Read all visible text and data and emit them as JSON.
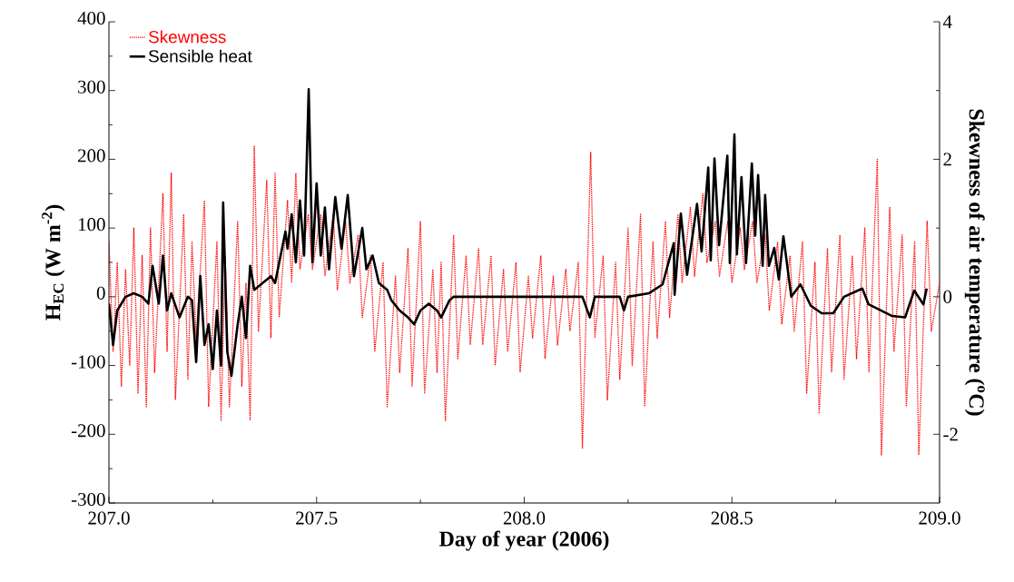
{
  "chart_data": {
    "type": "line",
    "xlabel": "Day of year (2006)",
    "ylabel": "H$_{EC}$ (W m$^{-2}$)",
    "y2label": "Skewness of air temperature ($^{o}$C)",
    "xlim": [
      207.0,
      209.0
    ],
    "xticks": [
      {
        "value": 207.0,
        "label": "207.0"
      },
      {
        "value": 207.5,
        "label": "207.5"
      },
      {
        "value": 208.0,
        "label": "208.0"
      },
      {
        "value": 208.5,
        "label": "208.5"
      },
      {
        "value": 209.0,
        "label": "209.0"
      }
    ],
    "ylim": [
      -300,
      400
    ],
    "yticks": [
      -300,
      -200,
      -100,
      0,
      100,
      200,
      300,
      400
    ],
    "y2lim": [
      -3,
      4
    ],
    "y2ticks": [
      -2,
      0,
      2,
      4
    ],
    "legend": "top left",
    "grid": false,
    "marker": "none",
    "series": [
      {
        "name": "Skewness",
        "color": "#ff0000",
        "axis": "y2",
        "line_style": "dotted",
        "x": [
          207.0,
          207.01,
          207.02,
          207.03,
          207.04,
          207.05,
          207.06,
          207.07,
          207.08,
          207.09,
          207.1,
          207.11,
          207.13,
          207.14,
          207.15,
          207.16,
          207.18,
          207.19,
          207.2,
          207.21,
          207.23,
          207.24,
          207.26,
          207.27,
          207.28,
          207.29,
          207.31,
          207.32,
          207.33,
          207.34,
          207.35,
          207.36,
          207.38,
          207.39,
          207.4,
          207.41,
          207.43,
          207.44,
          207.45,
          207.46,
          207.48,
          207.49,
          207.51,
          207.52,
          207.54,
          207.55,
          207.57,
          207.58,
          207.6,
          207.61,
          207.63,
          207.64,
          207.66,
          207.67,
          207.69,
          207.7,
          207.72,
          207.73,
          207.75,
          207.76,
          207.78,
          207.79,
          207.8,
          207.81,
          207.83,
          207.84,
          207.86,
          207.87,
          207.89,
          207.9,
          207.92,
          207.93,
          207.95,
          207.96,
          207.98,
          207.99,
          208.01,
          208.02,
          208.04,
          208.05,
          208.07,
          208.08,
          208.1,
          208.11,
          208.13,
          208.14,
          208.16,
          208.17,
          208.19,
          208.2,
          208.22,
          208.23,
          208.25,
          208.26,
          208.28,
          208.29,
          208.31,
          208.32,
          208.34,
          208.35,
          208.37,
          208.38,
          208.4,
          208.41,
          208.43,
          208.44,
          208.46,
          208.47,
          208.49,
          208.5,
          208.52,
          208.53,
          208.55,
          208.56,
          208.58,
          208.59,
          208.61,
          208.62,
          208.64,
          208.65,
          208.67,
          208.68,
          208.7,
          208.71,
          208.73,
          208.74,
          208.76,
          208.77,
          208.79,
          208.8,
          208.82,
          208.83,
          208.85,
          208.86,
          208.88,
          208.89,
          208.91,
          208.92,
          208.94,
          208.95,
          208.97,
          208.98,
          209.0
        ],
        "values": [
          0.8,
          -0.8,
          0.5,
          -1.3,
          0.4,
          -1.0,
          1.0,
          -1.4,
          0.6,
          -1.6,
          1.0,
          -1.1,
          1.5,
          -0.8,
          1.8,
          -1.5,
          1.2,
          -1.2,
          0.8,
          -0.6,
          1.4,
          -1.6,
          0.8,
          -1.8,
          0.6,
          -1.6,
          1.1,
          -1.3,
          0.2,
          -1.8,
          2.2,
          -0.5,
          1.7,
          -0.6,
          1.8,
          -0.3,
          1.4,
          0.2,
          1.8,
          0.4,
          1.2,
          0.4,
          1.2,
          0.3,
          1.2,
          0.1,
          1.1,
          0.2,
          0.9,
          -0.3,
          0.6,
          -0.8,
          0.5,
          -1.6,
          0.3,
          -1.1,
          0.7,
          -1.3,
          1.1,
          -1.4,
          0.4,
          -1.1,
          0.5,
          -1.8,
          0.9,
          -0.9,
          0.6,
          -0.7,
          0.7,
          -0.7,
          0.6,
          -1.0,
          0.4,
          -0.8,
          0.5,
          -1.1,
          0.3,
          -0.6,
          0.6,
          -0.9,
          0.3,
          -0.7,
          0.4,
          -0.5,
          0.5,
          -2.2,
          2.1,
          -0.6,
          0.6,
          -1.5,
          0.5,
          -1.2,
          1.0,
          -1.0,
          1.2,
          -1.6,
          0.8,
          -0.6,
          1.1,
          -0.3,
          1.2,
          0.2,
          1.3,
          0.3,
          1.5,
          0.5,
          1.1,
          0.3,
          1.1,
          0.2,
          1.0,
          0.4,
          1.1,
          0.2,
          0.9,
          -0.2,
          0.8,
          -0.4,
          0.6,
          -0.5,
          0.8,
          -1.4,
          0.5,
          -1.7,
          0.7,
          -1.1,
          0.9,
          -1.2,
          0.6,
          -0.9,
          1.0,
          -1.1,
          2.0,
          -2.3,
          1.3,
          -0.8,
          0.9,
          -1.6,
          0.8,
          -2.3,
          1.1,
          -0.5,
          0.2
        ]
      },
      {
        "name": "Sensible heat",
        "color": "#000000",
        "line_style": "solid",
        "x": [
          207.0,
          207.01,
          207.02,
          207.04,
          207.06,
          207.08,
          207.095,
          207.105,
          207.12,
          207.13,
          207.14,
          207.15,
          207.17,
          207.19,
          207.2,
          207.21,
          207.22,
          207.23,
          207.24,
          207.25,
          207.26,
          207.27,
          207.275,
          207.285,
          207.295,
          207.31,
          207.32,
          207.33,
          207.34,
          207.35,
          207.37,
          207.39,
          207.4,
          207.425,
          207.43,
          207.44,
          207.45,
          207.46,
          207.47,
          207.481,
          207.49,
          207.5,
          207.51,
          207.52,
          207.53,
          207.545,
          207.56,
          207.575,
          207.59,
          207.61,
          207.62,
          207.635,
          207.65,
          207.67,
          207.68,
          207.7,
          207.72,
          207.735,
          207.75,
          207.77,
          207.79,
          207.8,
          207.82,
          207.83,
          208.0,
          208.14,
          208.158,
          208.17,
          208.23,
          208.24,
          208.25,
          208.3,
          208.333,
          208.36,
          208.362,
          208.377,
          208.392,
          208.416,
          208.427,
          208.443,
          208.449,
          208.458,
          208.469,
          208.489,
          208.495,
          208.506,
          208.512,
          208.523,
          208.534,
          208.548,
          208.556,
          208.563,
          208.574,
          208.58,
          208.589,
          208.602,
          208.613,
          208.624,
          208.643,
          208.665,
          208.69,
          208.716,
          208.744,
          208.77,
          208.814,
          208.829,
          208.886,
          208.917,
          208.939,
          208.961,
          208.969
        ],
        "values": [
          -10,
          -70,
          -20,
          0,
          5,
          0,
          -10,
          45,
          -10,
          60,
          -20,
          5,
          -30,
          0,
          -5,
          -95,
          30,
          -70,
          -40,
          -105,
          -20,
          -100,
          137,
          -80,
          -115,
          -40,
          0,
          -60,
          45,
          10,
          20,
          30,
          20,
          95,
          70,
          120,
          50,
          140,
          60,
          302,
          50,
          165,
          60,
          130,
          40,
          145,
          70,
          148,
          30,
          100,
          40,
          60,
          20,
          10,
          -5,
          -20,
          -30,
          -40,
          -20,
          -10,
          -20,
          -30,
          -5,
          0,
          0,
          0,
          -30,
          0,
          0,
          -20,
          0,
          5,
          18,
          78,
          3,
          121,
          32,
          135,
          66,
          188,
          53,
          201,
          75,
          205,
          49,
          236,
          62,
          174,
          49,
          194,
          89,
          177,
          45,
          148,
          45,
          71,
          25,
          88,
          0,
          18,
          -13,
          -24,
          -24,
          0,
          12,
          -11,
          -28,
          -30,
          9,
          -11,
          12
        ]
      }
    ]
  }
}
